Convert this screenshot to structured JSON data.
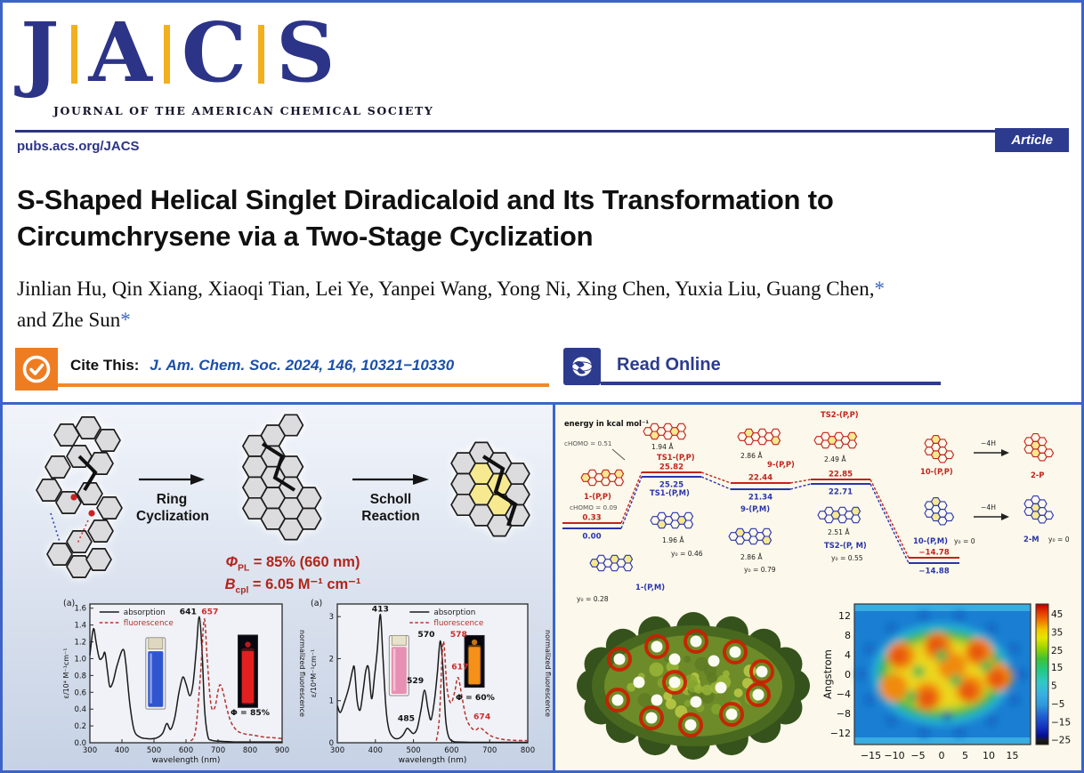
{
  "masthead": {
    "letters": [
      "J",
      "A",
      "C",
      "S"
    ],
    "subtitle": "JOURNAL OF THE AMERICAN CHEMICAL SOCIETY",
    "site_url": "pubs.acs.org/JACS",
    "article_badge": "Article"
  },
  "article": {
    "title_lines": [
      "S-Shaped Helical Singlet Diradicaloid and Its Transformation to",
      "Circumchrysene via a Two-Stage Cyclization"
    ],
    "authors_line1": "Jinlian Hu, Qin Xiang, Xiaoqi Tian, Lei Ye, Yanpei Wang, Yong Ni, Xing Chen, Yuxia Liu, Guang Chen,",
    "authors_line2": "and Zhe Sun",
    "asterisk": "*",
    "cite_label": "Cite This:",
    "citation": "J. Am. Chem. Soc. 2024, 146, 10321−10330",
    "read_online": "Read Online"
  },
  "graphical_abstract": {
    "arrow1_line1": "Ring",
    "arrow1_line2": "Cyclization",
    "arrow2_line1": "Scholl",
    "arrow2_line2": "Reaction",
    "phi_symbol": "Φ",
    "phi_sub": "PL",
    "phi_rest": " = 85% (660 nm)",
    "b_symbol": "B",
    "b_sub": "cpl",
    "b_rest": " = 6.05 M⁻¹ cm⁻¹"
  },
  "colors": {
    "navy": "#2b3487",
    "gold": "#f2b01e",
    "orange": "#ee7d22",
    "link_blue": "#1d4fa8",
    "metric_red": "#b3241a",
    "pathway_red": "#c1241b",
    "pathway_blue": "#2a34ad"
  },
  "chart_data": [
    {
      "type": "line",
      "panel_label": "(a)",
      "xlabel": "wavelength (nm)",
      "ylabel_left": "ε/10⁴ M⁻¹cm⁻¹",
      "ylabel_right": "normalized fluorescence",
      "xlim": [
        300,
        900
      ],
      "ylim": [
        0,
        1.65
      ],
      "x_ticks": [
        300,
        400,
        500,
        600,
        700,
        800,
        900
      ],
      "y_ticks": [
        0.0,
        0.2,
        0.4,
        0.6,
        0.8,
        1.0,
        1.2,
        1.4,
        1.6
      ],
      "y_tick_decimals": 1,
      "legend_x": 330,
      "series": [
        {
          "name": "absorption",
          "color": "#1a1a1a",
          "style": "solid",
          "points": [
            [
              300,
              1.04
            ],
            [
              308,
              1.3
            ],
            [
              313,
              1.35
            ],
            [
              320,
              1.18
            ],
            [
              330,
              1.0
            ],
            [
              340,
              1.02
            ],
            [
              347,
              1.07
            ],
            [
              355,
              0.85
            ],
            [
              362,
              0.67
            ],
            [
              372,
              0.72
            ],
            [
              385,
              0.92
            ],
            [
              403,
              1.11
            ],
            [
              412,
              0.95
            ],
            [
              425,
              0.45
            ],
            [
              438,
              0.15
            ],
            [
              455,
              0.07
            ],
            [
              475,
              0.05
            ],
            [
              500,
              0.05
            ],
            [
              515,
              0.07
            ],
            [
              528,
              0.12
            ],
            [
              540,
              0.23
            ],
            [
              552,
              0.16
            ],
            [
              565,
              0.3
            ],
            [
              578,
              0.6
            ],
            [
              590,
              0.78
            ],
            [
              600,
              0.7
            ],
            [
              612,
              0.56
            ],
            [
              622,
              0.7
            ],
            [
              632,
              1.1
            ],
            [
              641,
              1.5
            ],
            [
              650,
              1.1
            ],
            [
              658,
              0.4
            ],
            [
              668,
              0.08
            ],
            [
              680,
              0.03
            ],
            [
              700,
              0.02
            ],
            [
              750,
              0.01
            ],
            [
              800,
              0.01
            ],
            [
              850,
              0.01
            ],
            [
              900,
              0.01
            ]
          ]
        },
        {
          "name": "fluorescence",
          "color": "#b3342c",
          "style": "dashed",
          "points": [
            [
              615,
              0.02
            ],
            [
              630,
              0.15
            ],
            [
              645,
              0.8
            ],
            [
              657,
              1.47
            ],
            [
              666,
              1.0
            ],
            [
              678,
              0.45
            ],
            [
              690,
              0.42
            ],
            [
              700,
              0.62
            ],
            [
              707,
              0.69
            ],
            [
              716,
              0.6
            ],
            [
              728,
              0.4
            ],
            [
              740,
              0.25
            ],
            [
              755,
              0.16
            ],
            [
              770,
              0.12
            ],
            [
              790,
              0.1
            ],
            [
              810,
              0.09
            ],
            [
              840,
              0.07
            ],
            [
              870,
              0.06
            ],
            [
              900,
              0.05
            ]
          ]
        }
      ],
      "annotations": [
        {
          "text": "641",
          "x": 633,
          "y": 1.53,
          "color": "#111",
          "anchor": "end"
        },
        {
          "text": "657",
          "x": 648,
          "y": 1.53,
          "color": "#cc2e2e",
          "anchor": "start"
        },
        {
          "text": "Φ = 85%",
          "x": 800,
          "y": 0.33,
          "color": "#111",
          "anchor": "middle"
        }
      ],
      "insets": [
        {
          "style": "daylight",
          "x": 505,
          "top": 1.25,
          "bot": 0.4,
          "liquid": "#2f55cf",
          "cap": "#ded8c0"
        },
        {
          "style": "uv",
          "x": 793,
          "top": 1.28,
          "bot": 0.42,
          "liquid": "#e32020"
        }
      ]
    },
    {
      "type": "line",
      "panel_label": "(a)",
      "xlabel": "wavelength (nm)",
      "ylabel_left": "ε/10⁴M⁻¹cm⁻¹",
      "ylabel_right": "normalized fluorescence",
      "xlim": [
        300,
        800
      ],
      "ylim": [
        0,
        3.3
      ],
      "x_ticks": [
        300,
        400,
        500,
        600,
        700,
        800
      ],
      "y_ticks": [
        0,
        1,
        2,
        3
      ],
      "y_tick_decimals": 0,
      "legend_x": 490,
      "series": [
        {
          "name": "absorption",
          "color": "#1a1a1a",
          "style": "solid",
          "points": [
            [
              300,
              0.88
            ],
            [
              308,
              0.72
            ],
            [
              318,
              0.95
            ],
            [
              330,
              1.3
            ],
            [
              340,
              1.72
            ],
            [
              345,
              1.77
            ],
            [
              352,
              1.0
            ],
            [
              360,
              0.78
            ],
            [
              368,
              1.25
            ],
            [
              375,
              1.72
            ],
            [
              382,
              1.78
            ],
            [
              390,
              1.05
            ],
            [
              398,
              1.6
            ],
            [
              405,
              2.2
            ],
            [
              413,
              3.05
            ],
            [
              420,
              2.0
            ],
            [
              428,
              0.8
            ],
            [
              436,
              0.3
            ],
            [
              448,
              0.12
            ],
            [
              460,
              0.1
            ],
            [
              472,
              0.18
            ],
            [
              483,
              0.34
            ],
            [
              490,
              0.3
            ],
            [
              500,
              0.22
            ],
            [
              510,
              0.35
            ],
            [
              520,
              0.8
            ],
            [
              529,
              1.25
            ],
            [
              538,
              0.8
            ],
            [
              546,
              0.55
            ],
            [
              555,
              1.0
            ],
            [
              563,
              1.7
            ],
            [
              570,
              2.42
            ],
            [
              577,
              1.8
            ],
            [
              584,
              0.6
            ],
            [
              592,
              0.15
            ],
            [
              605,
              0.03
            ],
            [
              620,
              0.02
            ],
            [
              650,
              0.01
            ],
            [
              700,
              0.01
            ],
            [
              750,
              0.01
            ],
            [
              800,
              0.01
            ]
          ]
        },
        {
          "name": "fluorescence",
          "color": "#b3342c",
          "style": "dashed",
          "points": [
            [
              560,
              0.05
            ],
            [
              568,
              0.6
            ],
            [
              578,
              2.4
            ],
            [
              588,
              1.3
            ],
            [
              598,
              0.95
            ],
            [
              608,
              1.2
            ],
            [
              617,
              1.55
            ],
            [
              628,
              1.05
            ],
            [
              638,
              0.6
            ],
            [
              650,
              0.38
            ],
            [
              662,
              0.3
            ],
            [
              674,
              0.36
            ],
            [
              686,
              0.28
            ],
            [
              700,
              0.18
            ],
            [
              715,
              0.12
            ],
            [
              735,
              0.08
            ],
            [
              760,
              0.06
            ],
            [
              800,
              0.05
            ]
          ]
        }
      ],
      "annotations": [
        {
          "text": "413",
          "x": 413,
          "y": 3.12,
          "color": "#111",
          "anchor": "middle"
        },
        {
          "text": "570",
          "x": 556,
          "y": 2.52,
          "color": "#111",
          "anchor": "end"
        },
        {
          "text": "578",
          "x": 596,
          "y": 2.52,
          "color": "#cc2e2e",
          "anchor": "start"
        },
        {
          "text": "529",
          "x": 527,
          "y": 1.42,
          "color": "#111",
          "anchor": "end"
        },
        {
          "text": "485",
          "x": 481,
          "y": 0.52,
          "color": "#111",
          "anchor": "middle"
        },
        {
          "text": "617",
          "x": 622,
          "y": 1.74,
          "color": "#cc2e2e",
          "anchor": "middle"
        },
        {
          "text": "674",
          "x": 680,
          "y": 0.56,
          "color": "#cc2e2e",
          "anchor": "middle"
        },
        {
          "text": "Φ = 60%",
          "x": 662,
          "y": 1.02,
          "color": "#111",
          "anchor": "middle"
        }
      ],
      "insets": [
        {
          "style": "daylight",
          "x": 462,
          "top": 2.55,
          "bot": 1.12,
          "liquid": "#e890b4",
          "cap": "#e8e2cc"
        },
        {
          "style": "uv",
          "x": 660,
          "top": 2.55,
          "bot": 1.32,
          "liquid": "#f59018"
        }
      ]
    },
    {
      "type": "heatmap",
      "ylabel": "Angstrom",
      "x_ticks": [
        -15,
        -10,
        -5,
        0,
        5,
        10,
        15
      ],
      "y_ticks": [
        12,
        8,
        4,
        0,
        -4,
        -8,
        -12
      ],
      "colorbar_ticks": [
        45,
        35,
        25,
        15,
        5,
        -5,
        -15,
        -25
      ],
      "description": "Map with oval region of high positive values (orange-red) on blue background"
    },
    {
      "type": "energy_profile",
      "title": "energy in kcal mol⁻¹",
      "series": [
        {
          "name": "(P,P) pathway",
          "color": "#c1241b",
          "levels": [
            0.33,
            25.82,
            22.44,
            22.85,
            -14.78
          ]
        },
        {
          "name": "(P,M) pathway",
          "color": "#2a34ad",
          "levels": [
            0.0,
            25.25,
            21.34,
            22.71,
            -14.88
          ]
        }
      ],
      "states": [
        {
          "red": "1-(P,P)",
          "blue": "1-(P,M)",
          "y0_blue": "y₀ = 0.28",
          "chomo_top": "cHOMO = 0.51",
          "chomo_bottom": "cHOMO = 0.09"
        },
        {
          "red": "TS1-(P,P)",
          "blue": "TS1-(P,M)",
          "dist_red": "1.94 Å",
          "dist_blue": "1.96 Å",
          "y0_blue": "y₀ = 0.46"
        },
        {
          "red": "9-(P,P)",
          "blue": "9-(P,M)",
          "dist_red": "2.86 Å",
          "dist_blue": "2.86 Å",
          "y0_blue": "y₀ = 0.79"
        },
        {
          "red": "TS2-(P,P)",
          "blue": "TS2-(P, M)",
          "dist_red": "2.49 Å",
          "dist_blue": "2.51 Å",
          "y0_blue": "y₀ = 0.55"
        },
        {
          "red": "10-(P,P)",
          "blue": "10-(P,M)",
          "y0_blue": "y₀ = 0"
        }
      ],
      "products": {
        "red": "2-P",
        "blue": "2-M",
        "arrow": "−4H",
        "y0": "y₀ = 0"
      }
    }
  ]
}
